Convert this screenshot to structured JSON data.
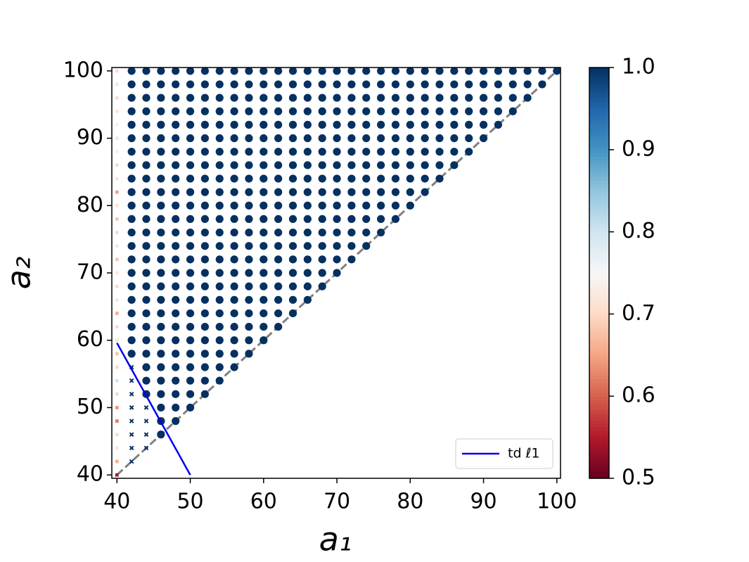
{
  "chart_data": {
    "type": "scatter",
    "xlabel": "a₁",
    "ylabel": "a₂",
    "xlim": [
      39.3,
      100.5
    ],
    "ylim": [
      39.5,
      100.5
    ],
    "xticks": [
      40,
      50,
      60,
      70,
      80,
      90,
      100
    ],
    "yticks": [
      40,
      50,
      60,
      70,
      80,
      90,
      100
    ],
    "cmap": "RdBu",
    "clim": [
      0.5,
      1.0
    ],
    "cticks": [
      0.5,
      0.6,
      0.7,
      0.8,
      0.9,
      {
        "value": 1.0,
        "label": "1.0"
      }
    ],
    "columns": [
      {
        "x": 40,
        "marker": ".",
        "y": [
          40,
          42,
          44,
          46,
          48,
          50,
          52,
          54,
          56,
          58,
          60,
          62,
          64,
          66,
          68,
          70,
          72,
          74,
          76,
          78,
          80,
          82,
          84,
          86,
          88,
          90,
          92,
          94,
          96,
          98,
          100
        ],
        "values": [
          0.55,
          0.66,
          0.72,
          0.7,
          0.62,
          0.64,
          0.7,
          0.8,
          0.7,
          0.68,
          0.72,
          0.7,
          0.66,
          0.72,
          0.7,
          0.72,
          0.68,
          0.72,
          0.7,
          0.68,
          0.72,
          0.65,
          0.72,
          0.7,
          0.74,
          0.72,
          0.74,
          0.72,
          0.7,
          0.72,
          0.7
        ]
      },
      {
        "x": 42,
        "marker": "x",
        "y": [
          42,
          44,
          46,
          48,
          50,
          52,
          54,
          56
        ],
        "value": 1
      },
      {
        "x": 44,
        "marker": "x",
        "y": [
          44,
          46,
          48,
          50
        ],
        "value": 1
      },
      {
        "x": 42,
        "marker": "o",
        "y": [
          58,
          60,
          62,
          64,
          66,
          68,
          70,
          72,
          74,
          76,
          78,
          80,
          82,
          84,
          86,
          88,
          90,
          92,
          94,
          96,
          98,
          100
        ],
        "value": 1
      },
      {
        "x": 44,
        "marker": "o",
        "y": [
          52,
          54,
          56,
          58,
          60,
          62,
          64,
          66,
          68,
          70,
          72,
          74,
          76,
          78,
          80,
          82,
          84,
          86,
          88,
          90,
          92,
          94,
          96,
          98,
          100
        ],
        "value": 1
      },
      {
        "x": 46,
        "marker": "o",
        "y": [
          46,
          48,
          50,
          52,
          54,
          56,
          58,
          60,
          62,
          64,
          66,
          68,
          70,
          72,
          74,
          76,
          78,
          80,
          82,
          84,
          86,
          88,
          90,
          92,
          94,
          96,
          98,
          100
        ],
        "value": 1
      },
      {
        "x": 48,
        "marker": "o",
        "y": [
          48,
          50,
          52,
          54,
          56,
          58,
          60,
          62,
          64,
          66,
          68,
          70,
          72,
          74,
          76,
          78,
          80,
          82,
          84,
          86,
          88,
          90,
          92,
          94,
          96,
          98,
          100
        ],
        "value": 1
      },
      {
        "x": 50,
        "marker": "o",
        "y": [
          50,
          52,
          54,
          56,
          58,
          60,
          62,
          64,
          66,
          68,
          70,
          72,
          74,
          76,
          78,
          80,
          82,
          84,
          86,
          88,
          90,
          92,
          94,
          96,
          98,
          100
        ],
        "value": 1
      },
      {
        "x": 52,
        "marker": "o",
        "y": [
          52,
          54,
          56,
          58,
          60,
          62,
          64,
          66,
          68,
          70,
          72,
          74,
          76,
          78,
          80,
          82,
          84,
          86,
          88,
          90,
          92,
          94,
          96,
          98,
          100
        ],
        "value": 1
      },
      {
        "x": 54,
        "marker": "o",
        "y": [
          54,
          56,
          58,
          60,
          62,
          64,
          66,
          68,
          70,
          72,
          74,
          76,
          78,
          80,
          82,
          84,
          86,
          88,
          90,
          92,
          94,
          96,
          98,
          100
        ],
        "value": 1
      },
      {
        "x": 56,
        "marker": "o",
        "y": [
          56,
          58,
          60,
          62,
          64,
          66,
          68,
          70,
          72,
          74,
          76,
          78,
          80,
          82,
          84,
          86,
          88,
          90,
          92,
          94,
          96,
          98,
          100
        ],
        "value": 1
      },
      {
        "x": 58,
        "marker": "o",
        "y": [
          58,
          60,
          62,
          64,
          66,
          68,
          70,
          72,
          74,
          76,
          78,
          80,
          82,
          84,
          86,
          88,
          90,
          92,
          94,
          96,
          98,
          100
        ],
        "value": 1
      },
      {
        "x": 60,
        "marker": "o",
        "y": [
          60,
          62,
          64,
          66,
          68,
          70,
          72,
          74,
          76,
          78,
          80,
          82,
          84,
          86,
          88,
          90,
          92,
          94,
          96,
          98,
          100
        ],
        "value": 1
      },
      {
        "x": 62,
        "marker": "o",
        "y": [
          62,
          64,
          66,
          68,
          70,
          72,
          74,
          76,
          78,
          80,
          82,
          84,
          86,
          88,
          90,
          92,
          94,
          96,
          98,
          100
        ],
        "value": 1
      },
      {
        "x": 64,
        "marker": "o",
        "y": [
          64,
          66,
          68,
          70,
          72,
          74,
          76,
          78,
          80,
          82,
          84,
          86,
          88,
          90,
          92,
          94,
          96,
          98,
          100
        ],
        "value": 1
      },
      {
        "x": 66,
        "marker": "o",
        "y": [
          66,
          68,
          70,
          72,
          74,
          76,
          78,
          80,
          82,
          84,
          86,
          88,
          90,
          92,
          94,
          96,
          98,
          100
        ],
        "value": 1
      },
      {
        "x": 68,
        "marker": "o",
        "y": [
          68,
          70,
          72,
          74,
          76,
          78,
          80,
          82,
          84,
          86,
          88,
          90,
          92,
          94,
          96,
          98,
          100
        ],
        "value": 1
      },
      {
        "x": 70,
        "marker": "o",
        "y": [
          70,
          72,
          74,
          76,
          78,
          80,
          82,
          84,
          86,
          88,
          90,
          92,
          94,
          96,
          98,
          100
        ],
        "value": 1
      },
      {
        "x": 72,
        "marker": "o",
        "y": [
          72,
          74,
          76,
          78,
          80,
          82,
          84,
          86,
          88,
          90,
          92,
          94,
          96,
          98,
          100
        ],
        "value": 1
      },
      {
        "x": 74,
        "marker": "o",
        "y": [
          74,
          76,
          78,
          80,
          82,
          84,
          86,
          88,
          90,
          92,
          94,
          96,
          98,
          100
        ],
        "value": 1
      },
      {
        "x": 76,
        "marker": "o",
        "y": [
          76,
          78,
          80,
          82,
          84,
          86,
          88,
          90,
          92,
          94,
          96,
          98,
          100
        ],
        "value": 1
      },
      {
        "x": 78,
        "marker": "o",
        "y": [
          78,
          80,
          82,
          84,
          86,
          88,
          90,
          92,
          94,
          96,
          98,
          100
        ],
        "value": 1
      },
      {
        "x": 80,
        "marker": "o",
        "y": [
          80,
          82,
          84,
          86,
          88,
          90,
          92,
          94,
          96,
          98,
          100
        ],
        "value": 1
      },
      {
        "x": 82,
        "marker": "o",
        "y": [
          82,
          84,
          86,
          88,
          90,
          92,
          94,
          96,
          98,
          100
        ],
        "value": 1
      },
      {
        "x": 84,
        "marker": "o",
        "y": [
          84,
          86,
          88,
          90,
          92,
          94,
          96,
          98,
          100
        ],
        "value": 1
      },
      {
        "x": 86,
        "marker": "o",
        "y": [
          86,
          88,
          90,
          92,
          94,
          96,
          98,
          100
        ],
        "value": 1
      },
      {
        "x": 88,
        "marker": "o",
        "y": [
          88,
          90,
          92,
          94,
          96,
          98,
          100
        ],
        "value": 1
      },
      {
        "x": 90,
        "marker": "o",
        "y": [
          90,
          92,
          94,
          96,
          98,
          100
        ],
        "value": 1
      },
      {
        "x": 92,
        "marker": "o",
        "y": [
          92,
          94,
          96,
          98,
          100
        ],
        "value": 1
      },
      {
        "x": 94,
        "marker": "o",
        "y": [
          94,
          96,
          98,
          100
        ],
        "value": 1
      },
      {
        "x": 96,
        "marker": "o",
        "y": [
          96,
          98,
          100
        ],
        "value": 1
      },
      {
        "x": 98,
        "marker": "o",
        "y": [
          98,
          100
        ],
        "value": 1
      },
      {
        "x": 100,
        "marker": "o",
        "y": [
          100
        ],
        "value": 1
      }
    ],
    "reference_line": {
      "x": [
        40,
        100
      ],
      "y": [
        40,
        100
      ],
      "color": "#808080"
    },
    "series": [
      {
        "name": "td ℓ1",
        "color": "#0000ee",
        "x": [
          40,
          50
        ],
        "y": [
          59.6,
          40
        ]
      }
    ],
    "legend": "lower right"
  }
}
